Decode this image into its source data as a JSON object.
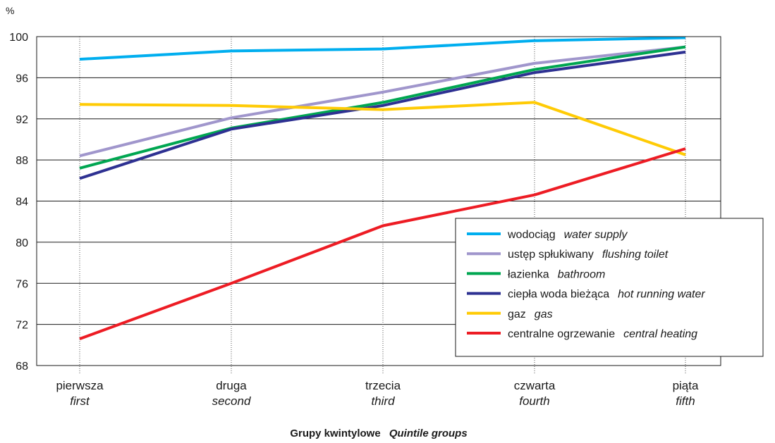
{
  "chart_data": {
    "type": "line",
    "unit_label": "%",
    "xtitle_pl": "Grupy kwintylowe",
    "xtitle_en": "Quintile groups",
    "ylim": [
      68,
      100
    ],
    "yticks": [
      "68",
      "72",
      "76",
      "80",
      "84",
      "88",
      "92",
      "96",
      "100"
    ],
    "categories": [
      {
        "pl": "pierwsza",
        "en": "first"
      },
      {
        "pl": "druga",
        "en": "second"
      },
      {
        "pl": "trzecia",
        "en": "third"
      },
      {
        "pl": "czwarta",
        "en": "fourth"
      },
      {
        "pl": "piąta",
        "en": "fifth"
      }
    ],
    "grid": true,
    "legend_position": "bottom-right",
    "series": [
      {
        "name_pl": "wodociąg",
        "name_en": "water supply",
        "color": "#00aeef",
        "values": [
          97.8,
          98.6,
          98.8,
          99.6,
          99.9
        ]
      },
      {
        "name_pl": "ustęp spłukiwany",
        "name_en": "flushing toilet",
        "color": "#a096cc",
        "values": [
          88.4,
          92.1,
          94.6,
          97.4,
          99.0
        ]
      },
      {
        "name_pl": "łazienka",
        "name_en": "bathroom",
        "color": "#00a651",
        "values": [
          87.2,
          91.1,
          93.6,
          96.8,
          99.0
        ]
      },
      {
        "name_pl": "ciepła woda bieżąca",
        "name_en": "hot running water",
        "color": "#2e3192",
        "values": [
          86.2,
          91.0,
          93.3,
          96.5,
          98.5
        ]
      },
      {
        "name_pl": "gaz",
        "name_en": "gas",
        "color": "#ffcb05",
        "values": [
          93.4,
          93.3,
          92.9,
          93.6,
          88.5
        ]
      },
      {
        "name_pl": "centralne ogrzewanie",
        "name_en": "central heating",
        "color": "#ed1c24",
        "values": [
          70.6,
          76.0,
          81.6,
          84.6,
          89.1
        ]
      }
    ]
  }
}
